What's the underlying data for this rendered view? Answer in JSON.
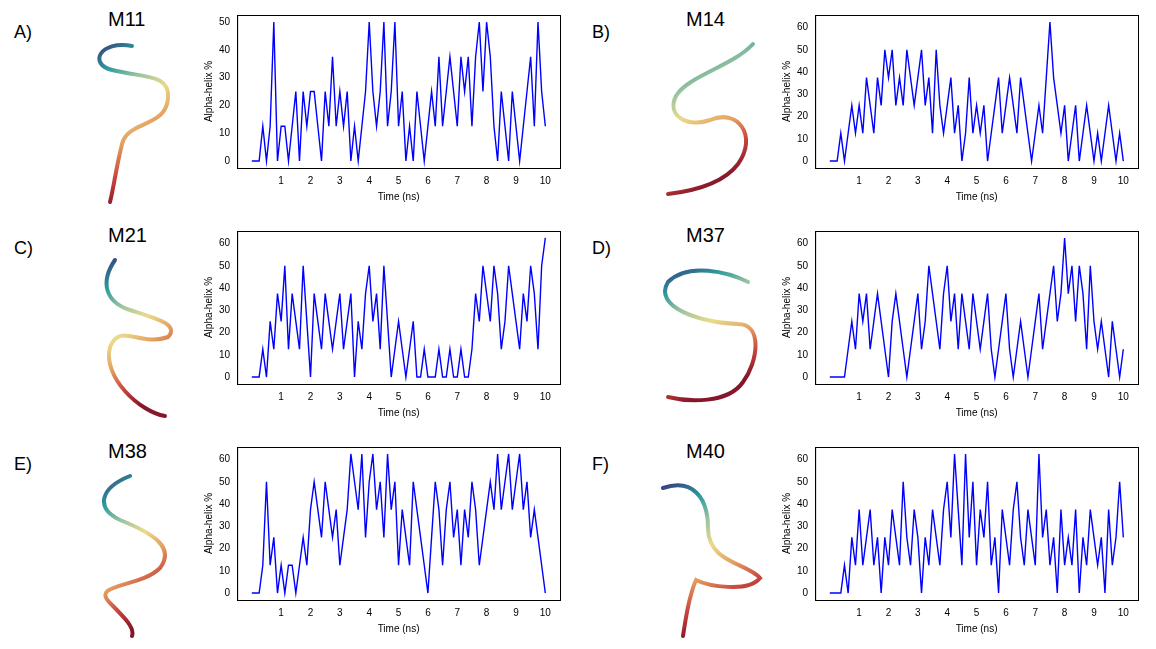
{
  "chart_data": [
    {
      "type": "line",
      "panel": "A)",
      "title": "M11",
      "x_label": "Time (ns)",
      "y_label": "Alpha-helix %",
      "color": "#0000ff",
      "grid": false,
      "xlim": [
        -0.5,
        10.5
      ],
      "xticks": [
        1,
        2,
        3,
        4,
        5,
        6,
        7,
        8,
        9,
        10
      ],
      "ylim": [
        -2.5,
        52.5
      ],
      "yticks": [
        0,
        10,
        20,
        30,
        40,
        50
      ],
      "x": [
        0,
        0.125,
        0.25,
        0.375,
        0.5,
        0.625,
        0.75,
        0.875,
        1,
        1.125,
        1.25,
        1.375,
        1.5,
        1.625,
        1.75,
        1.875,
        2,
        2.125,
        2.25,
        2.375,
        2.5,
        2.625,
        2.75,
        2.875,
        3,
        3.125,
        3.25,
        3.375,
        3.5,
        3.625,
        3.75,
        3.875,
        4,
        4.125,
        4.25,
        4.375,
        4.5,
        4.625,
        4.75,
        4.875,
        5,
        5.125,
        5.25,
        5.375,
        5.5,
        5.625,
        5.75,
        5.875,
        6,
        6.125,
        6.25,
        6.375,
        6.5,
        6.625,
        6.75,
        6.875,
        7,
        7.125,
        7.25,
        7.375,
        7.5,
        7.625,
        7.75,
        7.875,
        8,
        8.125,
        8.25,
        8.375,
        8.5,
        8.625,
        8.75,
        8.875,
        9,
        9.125,
        9.25,
        9.375,
        9.5,
        9.625,
        9.75,
        9.875,
        10
      ],
      "values": [
        0,
        0,
        0,
        12.5,
        0,
        12.5,
        50,
        0,
        12.5,
        12.5,
        0,
        12.5,
        25,
        0,
        25,
        12.5,
        25,
        25,
        12.5,
        0,
        25,
        12.5,
        37.5,
        12.5,
        25,
        12.5,
        25,
        0,
        12.5,
        0,
        12.5,
        25,
        50,
        25,
        12.5,
        25,
        50,
        12.5,
        25,
        50,
        12.5,
        25,
        0,
        12.5,
        0,
        25,
        12.5,
        0,
        12.5,
        25,
        12.5,
        37.5,
        12.5,
        25,
        37.5,
        25,
        12.5,
        37.5,
        25,
        37.5,
        12.5,
        37.5,
        50,
        25,
        50,
        37.5,
        12.5,
        0,
        25,
        12.5,
        0,
        25,
        12.5,
        0,
        12.5,
        25,
        37.5,
        12.5,
        50,
        25,
        12.5
      ]
    },
    {
      "type": "line",
      "panel": "B)",
      "title": "M14",
      "x_label": "Time (ns)",
      "y_label": "Alpha-helix %",
      "color": "#0000ff",
      "grid": false,
      "xlim": [
        -0.5,
        10.5
      ],
      "xticks": [
        1,
        2,
        3,
        4,
        5,
        6,
        7,
        8,
        9,
        10
      ],
      "ylim": [
        -3.125,
        65.625
      ],
      "yticks": [
        0,
        10,
        20,
        30,
        40,
        50,
        60
      ],
      "x": [
        0,
        0.125,
        0.25,
        0.375,
        0.5,
        0.625,
        0.75,
        0.875,
        1,
        1.125,
        1.25,
        1.375,
        1.5,
        1.625,
        1.75,
        1.875,
        2,
        2.125,
        2.25,
        2.375,
        2.5,
        2.625,
        2.75,
        2.875,
        3,
        3.125,
        3.25,
        3.375,
        3.5,
        3.625,
        3.75,
        3.875,
        4,
        4.125,
        4.25,
        4.375,
        4.5,
        4.625,
        4.75,
        4.875,
        5,
        5.125,
        5.25,
        5.375,
        5.5,
        5.625,
        5.75,
        5.875,
        6,
        6.125,
        6.25,
        6.375,
        6.5,
        6.625,
        6.75,
        6.875,
        7,
        7.125,
        7.25,
        7.375,
        7.5,
        7.625,
        7.75,
        7.875,
        8,
        8.125,
        8.25,
        8.375,
        8.5,
        8.625,
        8.75,
        8.875,
        9,
        9.125,
        9.25,
        9.375,
        9.5,
        9.625,
        9.75,
        9.875,
        10
      ],
      "values": [
        0,
        0,
        0,
        12.5,
        0,
        12.5,
        25,
        12.5,
        25,
        12.5,
        37.5,
        25,
        12.5,
        37.5,
        25,
        50,
        37.5,
        50,
        25,
        37.5,
        25,
        50,
        37.5,
        25,
        37.5,
        50,
        25,
        37.5,
        12.5,
        50,
        25,
        12.5,
        25,
        37.5,
        12.5,
        25,
        0,
        12.5,
        37.5,
        12.5,
        25,
        12.5,
        25,
        0,
        12.5,
        25,
        37.5,
        12.5,
        25,
        37.5,
        25,
        12.5,
        37.5,
        25,
        12.5,
        0,
        12.5,
        25,
        12.5,
        37.5,
        62.5,
        37.5,
        25,
        12.5,
        25,
        0,
        12.5,
        25,
        0,
        12.5,
        25,
        12.5,
        0,
        12.5,
        0,
        12.5,
        25,
        12.5,
        0,
        12.5,
        0
      ]
    },
    {
      "type": "line",
      "panel": "C)",
      "title": "M21",
      "x_label": "Time (ns)",
      "y_label": "Alpha-helix %",
      "color": "#0000ff",
      "grid": false,
      "xlim": [
        -0.5,
        10.5
      ],
      "xticks": [
        1,
        2,
        3,
        4,
        5,
        6,
        7,
        8,
        9,
        10
      ],
      "ylim": [
        -3.125,
        65.625
      ],
      "yticks": [
        0,
        10,
        20,
        30,
        40,
        50,
        60
      ],
      "x": [
        0,
        0.125,
        0.25,
        0.375,
        0.5,
        0.625,
        0.75,
        0.875,
        1,
        1.125,
        1.25,
        1.375,
        1.5,
        1.625,
        1.75,
        1.875,
        2,
        2.125,
        2.25,
        2.375,
        2.5,
        2.625,
        2.75,
        2.875,
        3,
        3.125,
        3.25,
        3.375,
        3.5,
        3.625,
        3.75,
        3.875,
        4,
        4.125,
        4.25,
        4.375,
        4.5,
        4.625,
        4.75,
        4.875,
        5,
        5.125,
        5.25,
        5.375,
        5.5,
        5.625,
        5.75,
        5.875,
        6,
        6.125,
        6.25,
        6.375,
        6.5,
        6.625,
        6.75,
        6.875,
        7,
        7.125,
        7.25,
        7.375,
        7.5,
        7.625,
        7.75,
        7.875,
        8,
        8.125,
        8.25,
        8.375,
        8.5,
        8.625,
        8.75,
        8.875,
        9,
        9.125,
        9.25,
        9.375,
        9.5,
        9.625,
        9.75,
        9.875,
        10
      ],
      "values": [
        0,
        0,
        0,
        12.5,
        0,
        25,
        12.5,
        37.5,
        25,
        50,
        12.5,
        37.5,
        25,
        12.5,
        50,
        25,
        0,
        37.5,
        25,
        12.5,
        37.5,
        25,
        12.5,
        25,
        37.5,
        12.5,
        25,
        37.5,
        0,
        25,
        12.5,
        37.5,
        50,
        25,
        37.5,
        12.5,
        50,
        25,
        0,
        12.5,
        25,
        12.5,
        0,
        12.5,
        25,
        0,
        0,
        12.5,
        0,
        0,
        0,
        12.5,
        0,
        0,
        12.5,
        0,
        0,
        12.5,
        0,
        0,
        12.5,
        37.5,
        25,
        50,
        37.5,
        25,
        50,
        37.5,
        12.5,
        25,
        50,
        37.5,
        25,
        12.5,
        37.5,
        25,
        50,
        37.5,
        12.5,
        50,
        62.5
      ]
    },
    {
      "type": "line",
      "panel": "D)",
      "title": "M37",
      "x_label": "Time (ns)",
      "y_label": "Alpha-helix %",
      "color": "#0000ff",
      "grid": false,
      "xlim": [
        -0.5,
        10.5
      ],
      "xticks": [
        1,
        2,
        3,
        4,
        5,
        6,
        7,
        8,
        9,
        10
      ],
      "ylim": [
        -3.125,
        65.625
      ],
      "yticks": [
        0,
        10,
        20,
        30,
        40,
        50,
        60
      ],
      "x": [
        0,
        0.125,
        0.25,
        0.375,
        0.5,
        0.625,
        0.75,
        0.875,
        1,
        1.125,
        1.25,
        1.375,
        1.5,
        1.625,
        1.75,
        1.875,
        2,
        2.125,
        2.25,
        2.375,
        2.5,
        2.625,
        2.75,
        2.875,
        3,
        3.125,
        3.25,
        3.375,
        3.5,
        3.625,
        3.75,
        3.875,
        4,
        4.125,
        4.25,
        4.375,
        4.5,
        4.625,
        4.75,
        4.875,
        5,
        5.125,
        5.25,
        5.375,
        5.5,
        5.625,
        5.75,
        5.875,
        6,
        6.125,
        6.25,
        6.375,
        6.5,
        6.625,
        6.75,
        6.875,
        7,
        7.125,
        7.25,
        7.375,
        7.5,
        7.625,
        7.75,
        7.875,
        8,
        8.125,
        8.25,
        8.375,
        8.5,
        8.625,
        8.75,
        8.875,
        9,
        9.125,
        9.25,
        9.375,
        9.5,
        9.625,
        9.75,
        9.875,
        10
      ],
      "values": [
        0,
        0,
        0,
        0,
        0,
        12.5,
        25,
        12.5,
        37.5,
        25,
        37.5,
        12.5,
        25,
        37.5,
        25,
        12.5,
        0,
        25,
        37.5,
        25,
        12.5,
        0,
        12.5,
        25,
        37.5,
        12.5,
        25,
        50,
        37.5,
        25,
        12.5,
        37.5,
        50,
        25,
        37.5,
        12.5,
        37.5,
        25,
        12.5,
        37.5,
        25,
        12.5,
        25,
        37.5,
        12.5,
        0,
        12.5,
        25,
        37.5,
        12.5,
        0,
        12.5,
        25,
        12.5,
        0,
        12.5,
        25,
        37.5,
        12.5,
        25,
        37.5,
        50,
        25,
        37.5,
        62.5,
        37.5,
        50,
        25,
        50,
        37.5,
        12.5,
        50,
        25,
        12.5,
        25,
        12.5,
        0,
        25,
        12.5,
        0,
        12.5
      ]
    },
    {
      "type": "line",
      "panel": "E)",
      "title": "M38",
      "x_label": "Time (ns)",
      "y_label": "Alpha-helix %",
      "color": "#0000ff",
      "grid": false,
      "xlim": [
        -0.5,
        10.5
      ],
      "xticks": [
        1,
        2,
        3,
        4,
        5,
        6,
        7,
        8,
        9,
        10
      ],
      "ylim": [
        -3.125,
        65.625
      ],
      "yticks": [
        0,
        10,
        20,
        30,
        40,
        50,
        60
      ],
      "x": [
        0,
        0.125,
        0.25,
        0.375,
        0.5,
        0.625,
        0.75,
        0.875,
        1,
        1.125,
        1.25,
        1.375,
        1.5,
        1.625,
        1.75,
        1.875,
        2,
        2.125,
        2.25,
        2.375,
        2.5,
        2.625,
        2.75,
        2.875,
        3,
        3.125,
        3.25,
        3.375,
        3.5,
        3.625,
        3.75,
        3.875,
        4,
        4.125,
        4.25,
        4.375,
        4.5,
        4.625,
        4.75,
        4.875,
        5,
        5.125,
        5.25,
        5.375,
        5.5,
        5.625,
        5.75,
        5.875,
        6,
        6.125,
        6.25,
        6.375,
        6.5,
        6.625,
        6.75,
        6.875,
        7,
        7.125,
        7.25,
        7.375,
        7.5,
        7.625,
        7.75,
        7.875,
        8,
        8.125,
        8.25,
        8.375,
        8.5,
        8.625,
        8.75,
        8.875,
        9,
        9.125,
        9.25,
        9.375,
        9.5,
        9.625,
        9.75,
        9.875,
        10
      ],
      "values": [
        0,
        0,
        0,
        12.5,
        50,
        12.5,
        25,
        0,
        12.5,
        0,
        12.5,
        12.5,
        0,
        12.5,
        25,
        12.5,
        37.5,
        50,
        37.5,
        25,
        50,
        37.5,
        25,
        37.5,
        12.5,
        25,
        37.5,
        62.5,
        50,
        37.5,
        62.5,
        25,
        50,
        62.5,
        37.5,
        50,
        25,
        62.5,
        37.5,
        50,
        12.5,
        37.5,
        25,
        12.5,
        50,
        37.5,
        25,
        12.5,
        0,
        25,
        50,
        37.5,
        12.5,
        37.5,
        50,
        25,
        37.5,
        12.5,
        37.5,
        25,
        50,
        37.5,
        12.5,
        25,
        37.5,
        50,
        37.5,
        62.5,
        37.5,
        50,
        62.5,
        37.5,
        50,
        62.5,
        37.5,
        50,
        25,
        37.5,
        25,
        12.5,
        0
      ]
    },
    {
      "type": "line",
      "panel": "F)",
      "title": "M40",
      "x_label": "Time (ns)",
      "y_label": "Alpha-helix %",
      "color": "#0000ff",
      "grid": false,
      "xlim": [
        -0.5,
        10.5
      ],
      "xticks": [
        1,
        2,
        3,
        4,
        5,
        6,
        7,
        8,
        9,
        10
      ],
      "ylim": [
        -3.125,
        65.625
      ],
      "yticks": [
        0,
        10,
        20,
        30,
        40,
        50,
        60
      ],
      "x": [
        0,
        0.125,
        0.25,
        0.375,
        0.5,
        0.625,
        0.75,
        0.875,
        1,
        1.125,
        1.25,
        1.375,
        1.5,
        1.625,
        1.75,
        1.875,
        2,
        2.125,
        2.25,
        2.375,
        2.5,
        2.625,
        2.75,
        2.875,
        3,
        3.125,
        3.25,
        3.375,
        3.5,
        3.625,
        3.75,
        3.875,
        4,
        4.125,
        4.25,
        4.375,
        4.5,
        4.625,
        4.75,
        4.875,
        5,
        5.125,
        5.25,
        5.375,
        5.5,
        5.625,
        5.75,
        5.875,
        6,
        6.125,
        6.25,
        6.375,
        6.5,
        6.625,
        6.75,
        6.875,
        7,
        7.125,
        7.25,
        7.375,
        7.5,
        7.625,
        7.75,
        7.875,
        8,
        8.125,
        8.25,
        8.375,
        8.5,
        8.625,
        8.75,
        8.875,
        9,
        9.125,
        9.25,
        9.375,
        9.5,
        9.625,
        9.75,
        9.875,
        10
      ],
      "values": [
        0,
        0,
        0,
        0,
        12.5,
        0,
        25,
        12.5,
        37.5,
        12.5,
        25,
        37.5,
        12.5,
        25,
        0,
        25,
        12.5,
        37.5,
        25,
        12.5,
        50,
        25,
        12.5,
        37.5,
        25,
        0,
        25,
        12.5,
        37.5,
        25,
        12.5,
        37.5,
        50,
        25,
        62.5,
        37.5,
        12.5,
        62.5,
        25,
        50,
        12.5,
        37.5,
        25,
        50,
        12.5,
        25,
        0,
        37.5,
        25,
        12.5,
        37.5,
        50,
        25,
        12.5,
        37.5,
        25,
        12.5,
        62.5,
        25,
        37.5,
        12.5,
        25,
        0,
        37.5,
        12.5,
        25,
        12.5,
        37.5,
        0,
        25,
        12.5,
        37.5,
        25,
        12.5,
        25,
        0,
        37.5,
        12.5,
        25,
        50,
        25
      ]
    }
  ]
}
